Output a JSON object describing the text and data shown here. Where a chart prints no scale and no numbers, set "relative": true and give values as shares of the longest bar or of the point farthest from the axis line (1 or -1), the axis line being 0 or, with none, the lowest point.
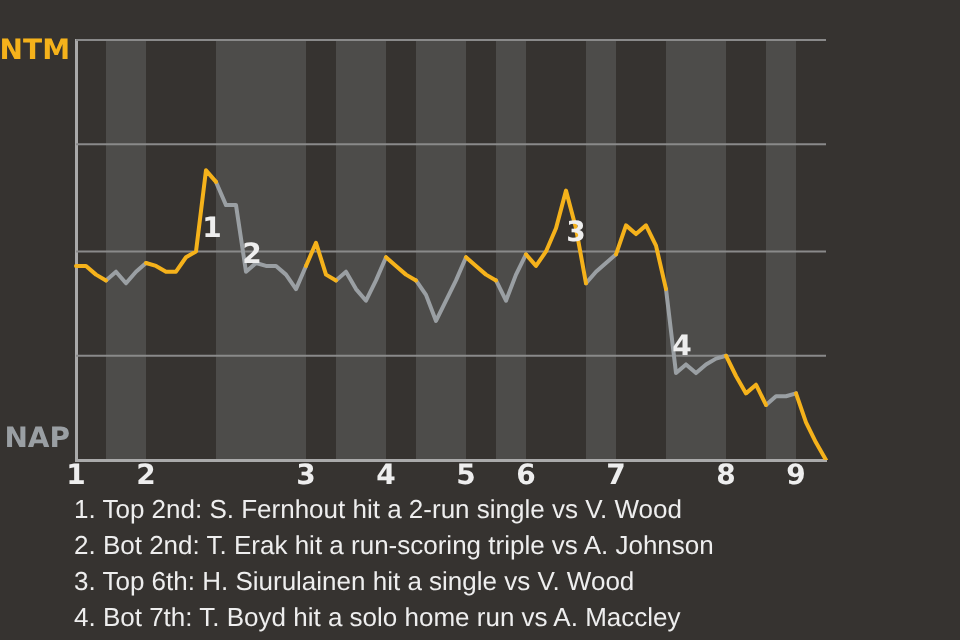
{
  "chart_data": {
    "type": "line",
    "relative": true,
    "categories": [
      "1",
      null,
      null,
      null,
      null,
      null,
      null,
      "2",
      null,
      null,
      null,
      null,
      null,
      null,
      null,
      null,
      null,
      null,
      null,
      null,
      null,
      null,
      null,
      "3",
      null,
      null,
      null,
      null,
      null,
      null,
      null,
      "4",
      null,
      null,
      null,
      null,
      null,
      null,
      null,
      "5",
      null,
      null,
      null,
      null,
      null,
      "6",
      null,
      null,
      null,
      null,
      null,
      null,
      null,
      null,
      "7",
      null,
      null,
      null,
      null,
      null,
      null,
      null,
      null,
      null,
      null,
      "8",
      null,
      null,
      null,
      null,
      null,
      null,
      "9",
      null,
      null,
      null
    ],
    "ref_lines": [
      {
        "axis": "y",
        "value": 0.36,
        "color": "#8a8a8a"
      },
      {
        "axis": "y",
        "value": 0.72,
        "color": "#8a8a8a"
      },
      {
        "axis": "y",
        "value": 1.09,
        "color": "#8a8a8a"
      },
      {
        "axis": "y",
        "value": 1.45,
        "color": "#8a8a8a"
      }
    ],
    "legend": false,
    "marker": "none",
    "line_style": "solid",
    "series": [
      {
        "name": "NTM",
        "color": "#f5b21b",
        "values": [
          0.67,
          0.67,
          0.64,
          0.62,
          null,
          null,
          null,
          0.68,
          0.67,
          0.65,
          0.65,
          0.7,
          0.72,
          1,
          0.96,
          null,
          null,
          null,
          null,
          null,
          null,
          null,
          null,
          0.67,
          0.75,
          0.64,
          0.62,
          null,
          null,
          null,
          null,
          0.7,
          0.67,
          0.64,
          0.62,
          null,
          null,
          null,
          null,
          0.7,
          0.67,
          0.64,
          0.62,
          null,
          null,
          0.71,
          0.67,
          0.72,
          0.8,
          0.93,
          0.8,
          0.61,
          null,
          null,
          0.71,
          0.81,
          0.78,
          0.81,
          0.74,
          0.59,
          null,
          null,
          null,
          null,
          null,
          0.36,
          0.29,
          0.23,
          0.26,
          0.19,
          null,
          null,
          0.23,
          0.13,
          0.06,
          0
        ]
      },
      {
        "name": "NAP",
        "color": "#9a9fa3",
        "values": [
          null,
          null,
          null,
          0.62,
          0.65,
          0.61,
          0.65,
          0.68,
          null,
          null,
          null,
          null,
          null,
          null,
          0.96,
          0.88,
          0.88,
          0.65,
          0.68,
          0.67,
          0.67,
          0.64,
          0.59,
          0.67,
          null,
          null,
          0.62,
          0.65,
          0.59,
          0.55,
          0.62,
          0.7,
          null,
          null,
          0.62,
          0.57,
          0.48,
          0.55,
          0.62,
          0.7,
          null,
          null,
          0.62,
          0.55,
          0.64,
          0.71,
          null,
          null,
          null,
          null,
          null,
          0.61,
          0.65,
          0.68,
          0.71,
          null,
          null,
          null,
          null,
          0.59,
          0.3,
          0.33,
          0.3,
          0.33,
          0.35,
          0.36,
          null,
          null,
          null,
          0.19,
          0.22,
          0.22,
          0.23,
          null,
          null,
          null
        ]
      }
    ],
    "annotations": [
      "1",
      "2",
      "3",
      "4",
      "1. Top 2nd: S. Fernhout hit a 2-run single vs V. Wood",
      "2. Bot 2nd: T. Erak hit a run-scoring triple vs A. Johnson",
      "3. Top 6th: H. Siurulainen hit a single vs V. Wood",
      "4. Bot 7th: T. Boyd hit a solo home run vs A. Maccley"
    ]
  }
}
